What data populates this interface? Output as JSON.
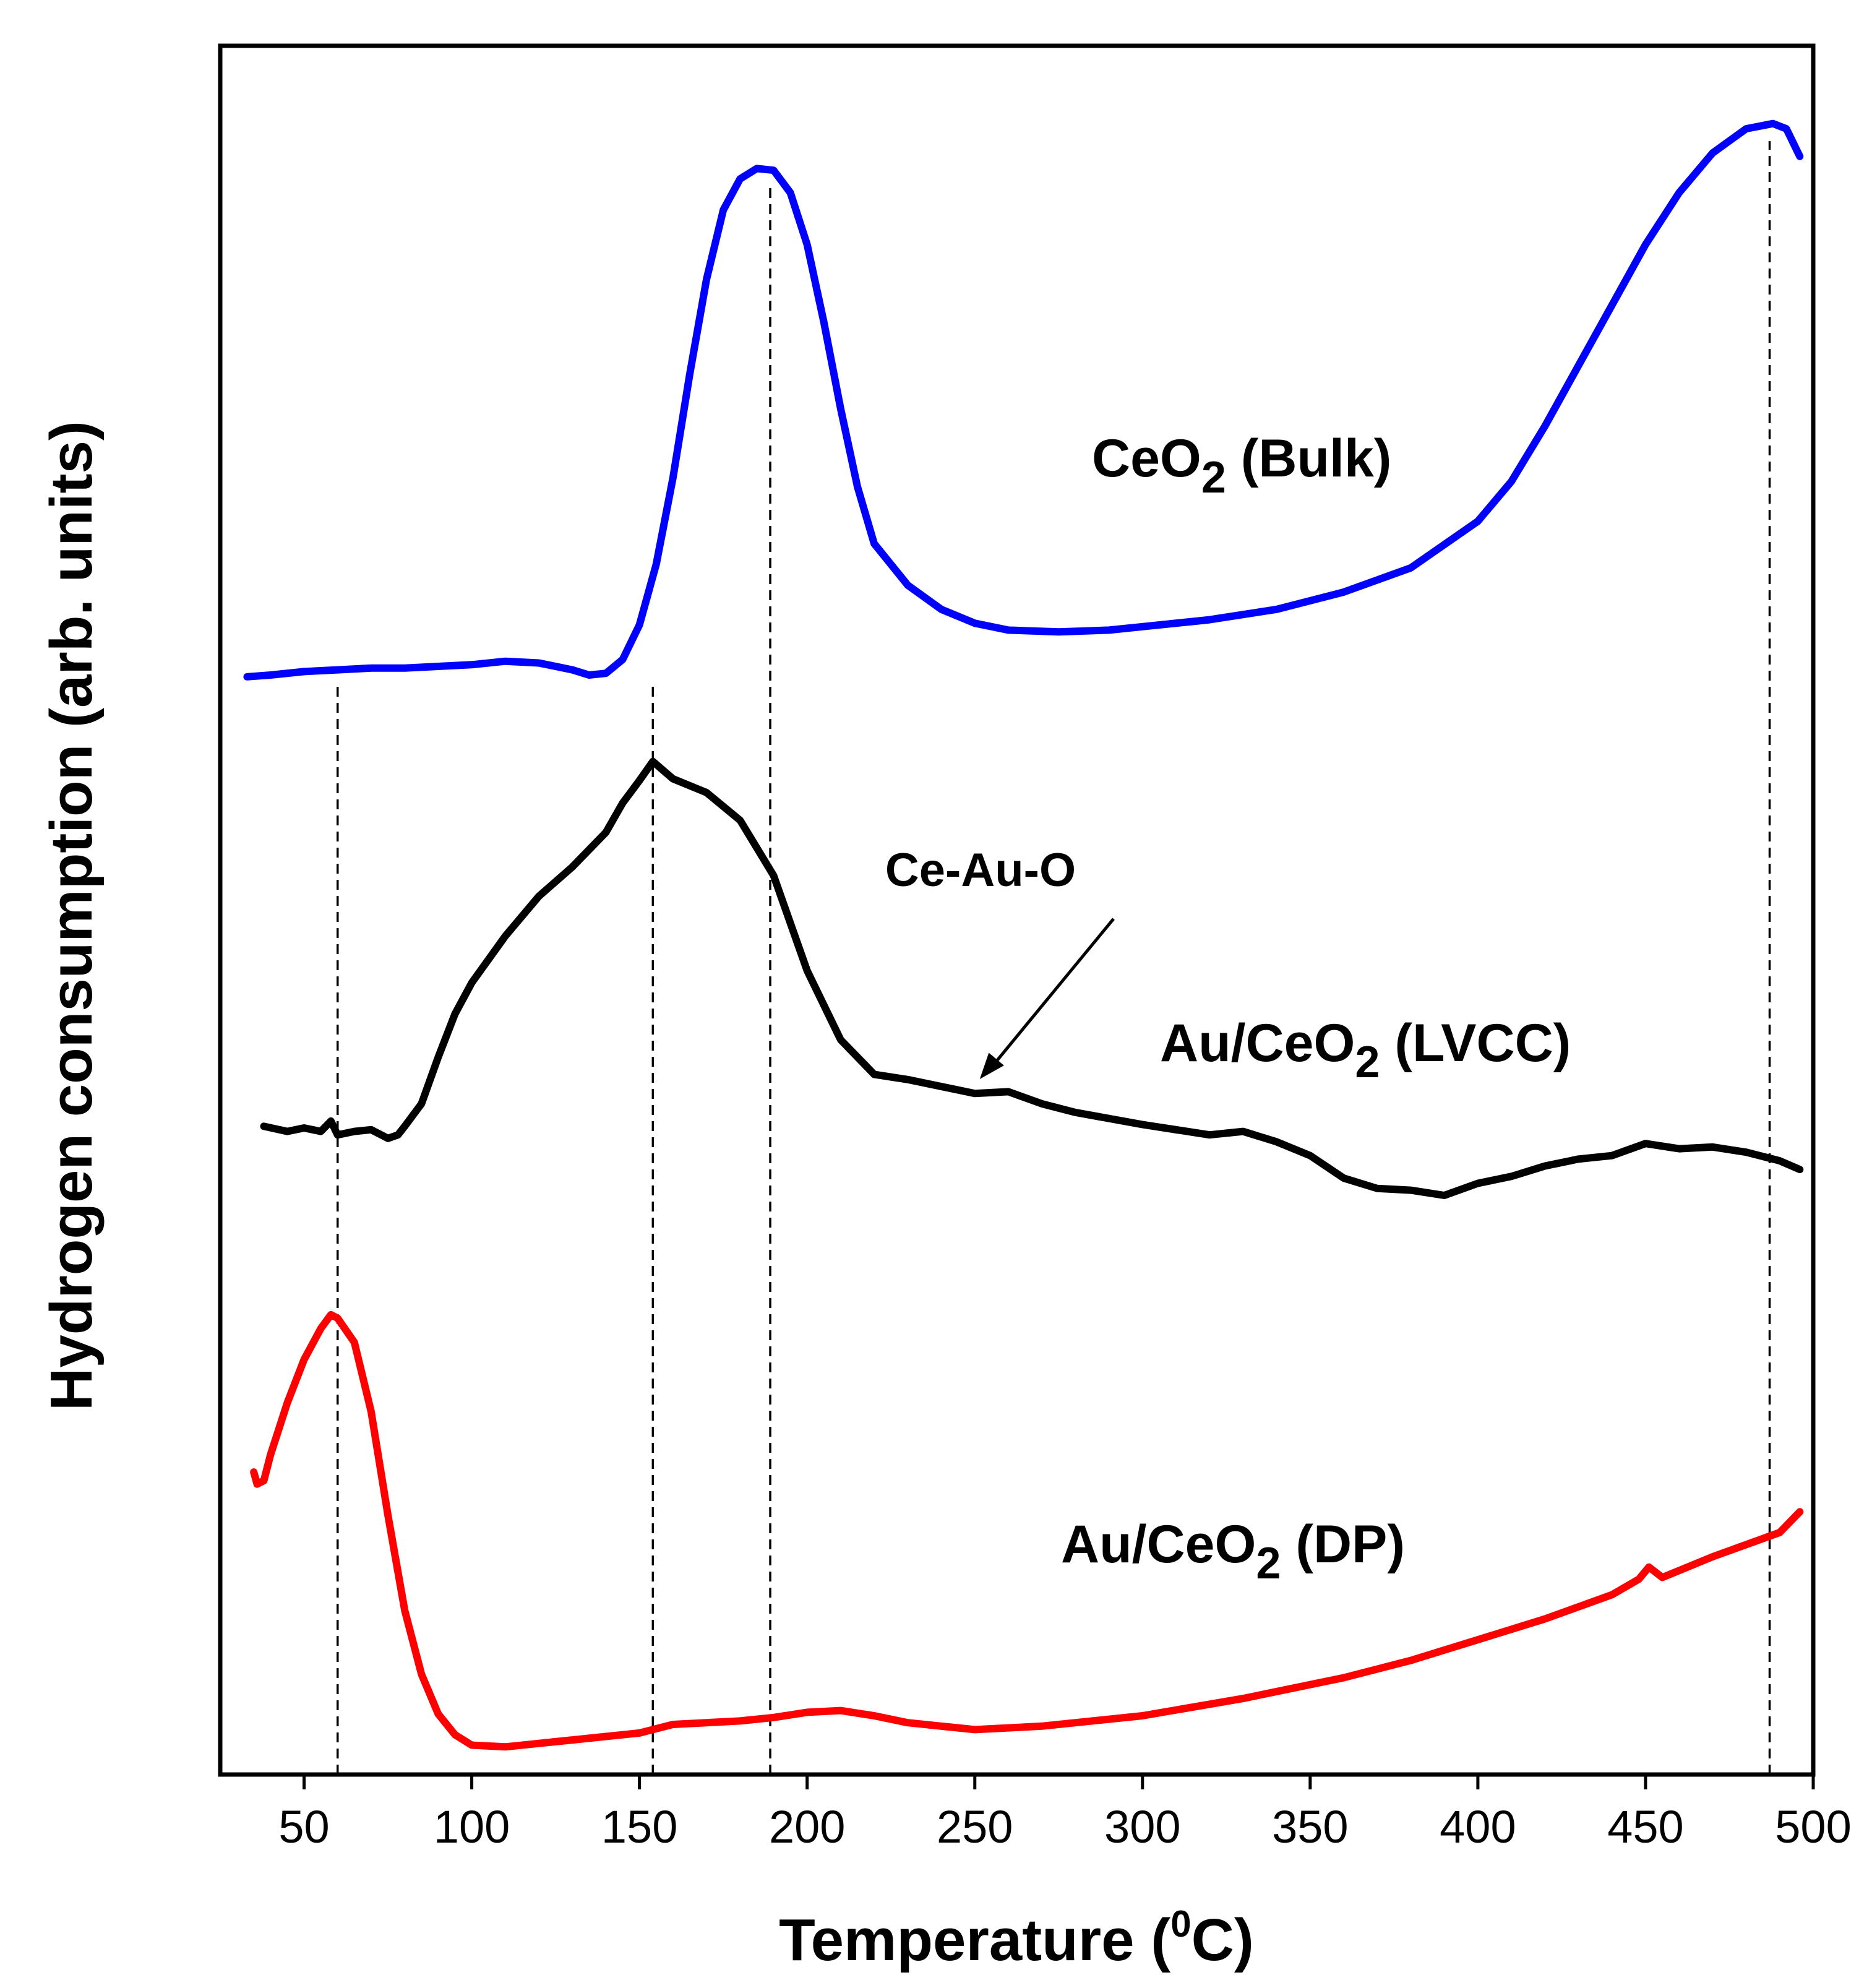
{
  "chart_data": {
    "type": "line",
    "title": "",
    "xlabel": "Temperature",
    "xlabel_unit_sup": "0",
    "xlabel_unit": "C",
    "ylabel": "Hydrogen consumption (arb. units)",
    "xlim": [
      25,
      500
    ],
    "ylim": [
      0,
      100
    ],
    "xticks": [
      50,
      100,
      150,
      200,
      250,
      300,
      350,
      400,
      450,
      500
    ],
    "yticks_shown": false,
    "grid": false,
    "series": [
      {
        "name": "CeO2 (Bulk)",
        "label_main": "CeO",
        "label_sub": "2",
        "label_rest": " (Bulk)",
        "color": "#0000FF",
        "x": [
          33,
          40,
          50,
          60,
          70,
          80,
          90,
          100,
          110,
          120,
          130,
          135,
          140,
          145,
          150,
          155,
          160,
          165,
          170,
          175,
          180,
          185,
          190,
          195,
          200,
          205,
          210,
          215,
          220,
          230,
          240,
          250,
          260,
          275,
          290,
          300,
          320,
          340,
          360,
          380,
          400,
          410,
          420,
          430,
          440,
          450,
          460,
          470,
          480,
          488,
          492,
          496
        ],
        "y": [
          63.5,
          63.6,
          63.8,
          63.9,
          64.0,
          64.0,
          64.1,
          64.2,
          64.4,
          64.3,
          63.9,
          63.6,
          63.7,
          64.5,
          66.5,
          70,
          75,
          81,
          86.5,
          90.5,
          92.3,
          92.9,
          92.8,
          91.5,
          88.5,
          84,
          79,
          74.5,
          71.2,
          68.8,
          67.4,
          66.6,
          66.2,
          66.1,
          66.2,
          66.4,
          66.8,
          67.4,
          68.4,
          69.8,
          72.5,
          74.8,
          78,
          81.5,
          85,
          88.5,
          91.5,
          93.8,
          95.2,
          95.5,
          95.2,
          93.6
        ]
      },
      {
        "name": "Au/CeO2 (LVCC)",
        "label_main": "Au/CeO",
        "label_sub": "2",
        "label_rest": " (LVCC)",
        "color": "#000000",
        "x": [
          38,
          45,
          50,
          55,
          58,
          60,
          65,
          70,
          75,
          78,
          80,
          85,
          90,
          95,
          100,
          110,
          120,
          130,
          140,
          145,
          150,
          154,
          160,
          170,
          180,
          190,
          200,
          210,
          220,
          230,
          240,
          250,
          260,
          270,
          280,
          300,
          320,
          330,
          340,
          350,
          360,
          370,
          380,
          390,
          400,
          410,
          420,
          430,
          440,
          450,
          460,
          470,
          480,
          490,
          496
        ],
        "y": [
          37.5,
          37.2,
          37.4,
          37.2,
          37.8,
          37.0,
          37.2,
          37.3,
          36.8,
          37.0,
          37.5,
          38.8,
          41.5,
          44,
          45.8,
          48.5,
          50.8,
          52.5,
          54.5,
          56.2,
          57.5,
          58.6,
          57.6,
          56.8,
          55.2,
          52,
          46.5,
          42.5,
          40.5,
          40.2,
          39.8,
          39.4,
          39.5,
          38.8,
          38.3,
          37.6,
          37.0,
          37.2,
          36.6,
          35.8,
          34.5,
          33.9,
          33.8,
          33.5,
          34.2,
          34.6,
          35.2,
          35.6,
          35.8,
          36.5,
          36.2,
          36.3,
          36.0,
          35.5,
          35.0
        ]
      },
      {
        "name": "Au/CeO2 (DP)",
        "label_main": "Au/CeO",
        "label_sub": "2",
        "label_rest": " (DP)",
        "color": "#FF0000",
        "x": [
          35,
          36,
          38,
          40,
          45,
          50,
          55,
          58,
          60,
          65,
          70,
          75,
          80,
          85,
          90,
          95,
          100,
          110,
          120,
          130,
          140,
          150,
          160,
          170,
          180,
          190,
          200,
          210,
          220,
          230,
          240,
          250,
          270,
          300,
          330,
          360,
          380,
          400,
          420,
          440,
          448,
          451,
          455,
          470,
          490,
          496
        ],
        "y": [
          17.5,
          16.8,
          17.0,
          18.5,
          21.5,
          24.0,
          25.8,
          26.6,
          26.4,
          25.0,
          21.0,
          15.0,
          9.5,
          5.8,
          3.5,
          2.3,
          1.7,
          1.6,
          1.8,
          2.0,
          2.2,
          2.4,
          2.9,
          3.0,
          3.1,
          3.3,
          3.6,
          3.7,
          3.4,
          3.0,
          2.8,
          2.6,
          2.8,
          3.4,
          4.4,
          5.6,
          6.6,
          7.8,
          9.0,
          10.4,
          11.3,
          12.0,
          11.4,
          12.6,
          14.0,
          15.2
        ]
      }
    ],
    "dashed_lines_x": [
      60,
      154,
      189,
      487
    ],
    "annotation": {
      "text": "Ce-Au-O",
      "target": [
        250,
        39.8
      ]
    }
  }
}
